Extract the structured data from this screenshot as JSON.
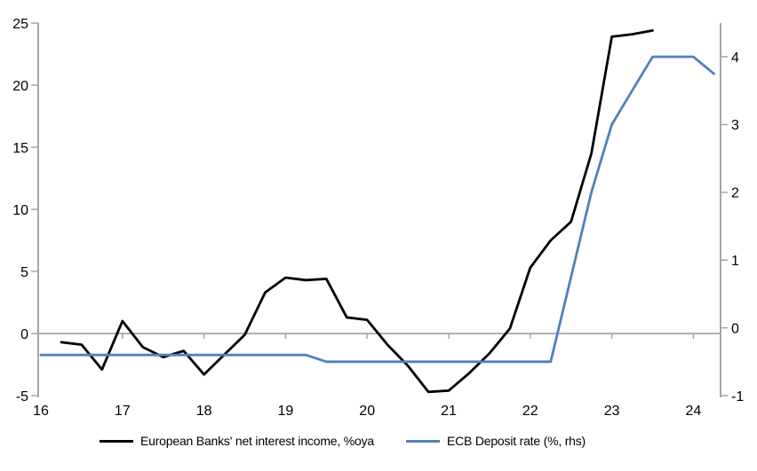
{
  "chart_data": {
    "type": "line",
    "title": "",
    "xlabel": "",
    "ylabel_left": "",
    "ylabel_right": "",
    "grid": "zero-line-only",
    "legend_position": "bottom",
    "x_axis": {
      "ticks": [
        2016,
        2017,
        2018,
        2019,
        2020,
        2021,
        2022,
        2023,
        2024
      ],
      "tick_labels": [
        "16",
        "17",
        "18",
        "19",
        "20",
        "21",
        "22",
        "23",
        "24"
      ],
      "range": [
        2016,
        2024.4
      ]
    },
    "y_axis_left": {
      "ticks": [
        -5,
        0,
        5,
        10,
        15,
        20,
        25
      ],
      "tick_labels": [
        "-5",
        "0",
        "5",
        "10",
        "15",
        "20",
        "25"
      ],
      "range": [
        -5,
        25
      ]
    },
    "y_axis_right": {
      "ticks": [
        -1,
        0,
        1,
        2,
        3,
        4
      ],
      "tick_labels": [
        "-1",
        "0",
        "1",
        "2",
        "3",
        "4"
      ],
      "range": [
        -1,
        4.5
      ]
    },
    "series": [
      {
        "name": "European Banks' net interest income, %oya",
        "axis": "left",
        "color": "#000000",
        "x": [
          2016.25,
          2016.5,
          2016.75,
          2017.0,
          2017.25,
          2017.5,
          2017.75,
          2018.0,
          2018.25,
          2018.5,
          2018.75,
          2019.0,
          2019.25,
          2019.5,
          2019.75,
          2020.0,
          2020.25,
          2020.5,
          2020.75,
          2021.0,
          2021.25,
          2021.5,
          2021.75,
          2022.0,
          2022.25,
          2022.5,
          2022.75,
          2023.0,
          2023.25,
          2023.5
        ],
        "values": [
          -0.7,
          -0.9,
          -2.9,
          1.0,
          -1.1,
          -1.9,
          -1.4,
          -3.3,
          -1.7,
          -0.1,
          3.3,
          4.5,
          4.3,
          4.4,
          1.3,
          1.1,
          -0.9,
          -2.6,
          -4.7,
          -4.6,
          -3.2,
          -1.6,
          0.4,
          5.3,
          7.5,
          9.0,
          14.5,
          23.9,
          24.1,
          24.4
        ]
      },
      {
        "name": "ECB Deposit rate (%, rhs)",
        "axis": "right",
        "color": "#4f81bd",
        "x": [
          2016.0,
          2016.25,
          2016.5,
          2016.75,
          2017.0,
          2017.25,
          2017.5,
          2017.75,
          2018.0,
          2018.25,
          2018.5,
          2018.75,
          2019.0,
          2019.25,
          2019.5,
          2019.75,
          2020.0,
          2020.25,
          2020.5,
          2020.75,
          2021.0,
          2021.25,
          2021.5,
          2021.75,
          2022.0,
          2022.25,
          2022.5,
          2022.75,
          2023.0,
          2023.25,
          2023.5,
          2023.75,
          2024.0,
          2024.25
        ],
        "values": [
          -0.4,
          -0.4,
          -0.4,
          -0.4,
          -0.4,
          -0.4,
          -0.4,
          -0.4,
          -0.4,
          -0.4,
          -0.4,
          -0.4,
          -0.4,
          -0.4,
          -0.5,
          -0.5,
          -0.5,
          -0.5,
          -0.5,
          -0.5,
          -0.5,
          -0.5,
          -0.5,
          -0.5,
          -0.5,
          -0.5,
          0.75,
          2.0,
          3.0,
          3.5,
          4.0,
          4.0,
          4.0,
          3.75
        ]
      }
    ]
  },
  "legend": {
    "items": [
      {
        "label": "European Banks' net interest income, %oya"
      },
      {
        "label": "ECB Deposit rate (%, rhs)"
      }
    ]
  },
  "colors": {
    "axis_gray": "#a6a6a6",
    "zero_line_gray": "#a6a6a6",
    "nii_line": "#000000",
    "deposit_line": "#4f81bd",
    "background": "#ffffff",
    "text": "#000000"
  }
}
